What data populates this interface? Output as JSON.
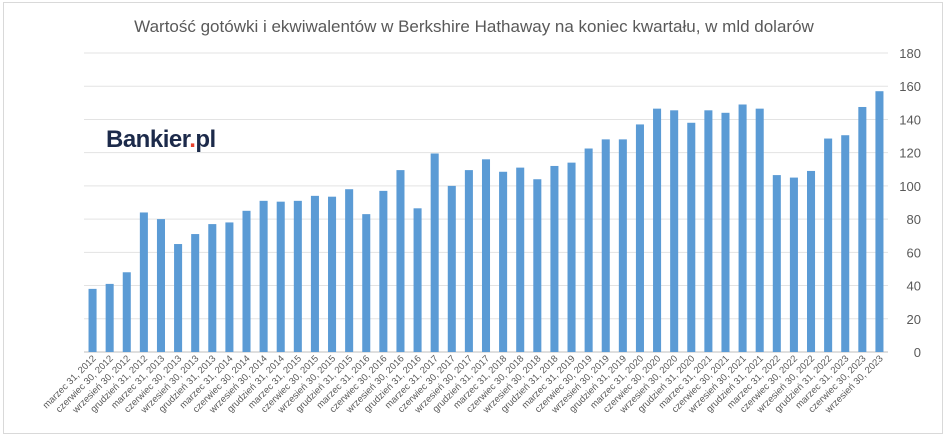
{
  "chart_data": {
    "type": "bar",
    "title": "Wartość gotówki i ekwiwalentów w Berkshire Hathaway na koniec kwartału, w mld dolarów",
    "xlabel": "",
    "ylabel": "",
    "ylim": [
      0,
      180
    ],
    "yticks": [
      0,
      20,
      40,
      60,
      80,
      100,
      120,
      140,
      160,
      180
    ],
    "y_axis_side": "right",
    "grid": true,
    "legend": "none",
    "bar_color": "#5b9bd5",
    "categories": [
      "marzec 31, 2012",
      "czerwiec 30, 2012",
      "wrzesień 30, 2012",
      "grudzień 31, 2012",
      "marzec 31, 2013",
      "czerwiec 30, 2013",
      "wrzesień 30, 2013",
      "grudzień 31, 2013",
      "marzec 31, 2014",
      "czerwiec 30, 2014",
      "wrzesień 30, 2014",
      "grudzień 31, 2014",
      "marzec 31, 2015",
      "czerwiec 30, 2015",
      "wrzesień 30, 2015",
      "grudzień 31, 2015",
      "marzec 31, 2016",
      "czerwiec 30, 2016",
      "wrzesień 30, 2016",
      "grudzień 31, 2016",
      "marzec 31, 2017",
      "czerwiec 30, 2017",
      "wrzesień 30, 2017",
      "grudzień 31, 2017",
      "marzec 31, 2018",
      "czerwiec 30, 2018",
      "wrzesień 30, 2018",
      "grudzień 31, 2018",
      "marzec 31, 2019",
      "czerwiec 30, 2019",
      "wrzesień 30, 2019",
      "grudzień 31, 2019",
      "marzec 31, 2020",
      "czerwiec 30, 2020",
      "wrzesień 30, 2020",
      "grudzień 31, 2020",
      "marzec 31, 2021",
      "czerwiec 30, 2021",
      "wrzesień 30, 2021",
      "grudzień 31, 2021",
      "marzec 31, 2022",
      "czerwiec 30, 2022",
      "wrzesień 30, 2022",
      "grudzień 31, 2022",
      "marzec 31, 2023",
      "czerwiec 30, 2023",
      "wrzesień 30, 2023"
    ],
    "values": [
      38,
      41,
      48,
      84,
      80,
      65,
      71,
      77,
      78,
      85,
      91,
      90.5,
      91,
      94,
      93.5,
      98,
      83,
      97,
      109.5,
      86.5,
      119.5,
      100,
      109.5,
      116,
      108.5,
      111,
      104,
      112,
      114,
      122.5,
      128,
      128,
      137,
      146.5,
      145.5,
      138,
      145.5,
      144,
      149,
      146.5,
      106.5,
      105,
      109,
      128.5,
      130.5,
      147.5,
      157
    ]
  },
  "branding": {
    "logo_text": "Bankier",
    "logo_dot": ".",
    "logo_suffix": "pl"
  }
}
